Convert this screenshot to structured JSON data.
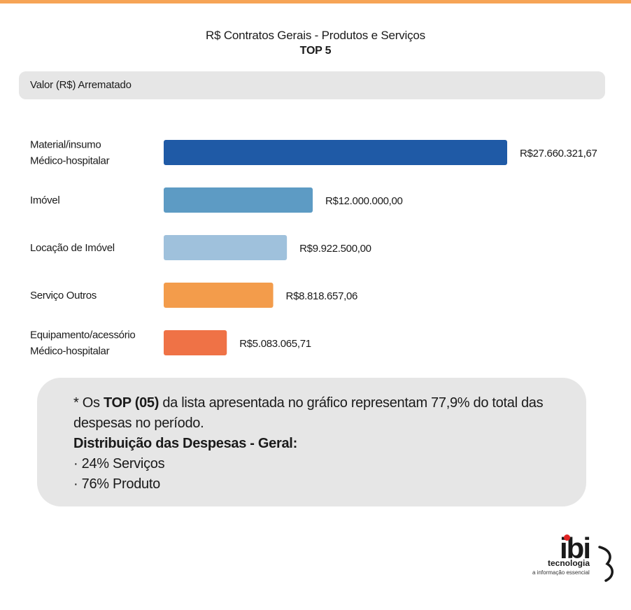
{
  "header": {
    "title": "R$ Contratos Gerais - Produtos e Serviços",
    "subtitle": "TOP 5"
  },
  "section": {
    "label": "Valor (R$) Arrematado"
  },
  "chart_data": {
    "type": "bar",
    "orientation": "horizontal",
    "title": "R$ Contratos Gerais - Produtos e Serviços",
    "subtitle": "TOP 5",
    "xlabel": "",
    "ylabel": "",
    "grid": false,
    "categories": [
      [
        "Material/insumo",
        "Médico-hospitalar"
      ],
      [
        "Imóvel"
      ],
      [
        "Locação de Imóvel"
      ],
      [
        "Serviço Outros"
      ],
      [
        "Equipamento/acessório",
        "Médico-hospitalar"
      ]
    ],
    "values": [
      27660321.67,
      12000000.0,
      9922500.0,
      8818657.06,
      5083065.71
    ],
    "value_labels": [
      "R$27.660.321,67",
      "R$12.000.000,00",
      "R$9.922.500,00",
      "R$8.818.657,06",
      "R$5.083.065,71"
    ],
    "colors": [
      "#1f5aa6",
      "#5d9bc4",
      "#9fc1dc",
      "#f39c4b",
      "#ef7246"
    ]
  },
  "note": {
    "line1_prefix": "* Os ",
    "line1_bold": "TOP (05)",
    "line1_suffix": " da lista apresentada no gráfico representam 77,9% do total das despesas no período.",
    "heading": "Distribuição das Despesas - Geral:",
    "items": [
      "· 24% Serviços",
      "· 76% Produto"
    ]
  },
  "logo": {
    "letters": "ibi",
    "brand": "tecnologia",
    "tagline": "a informação essencial",
    "accent": "#e02424"
  }
}
